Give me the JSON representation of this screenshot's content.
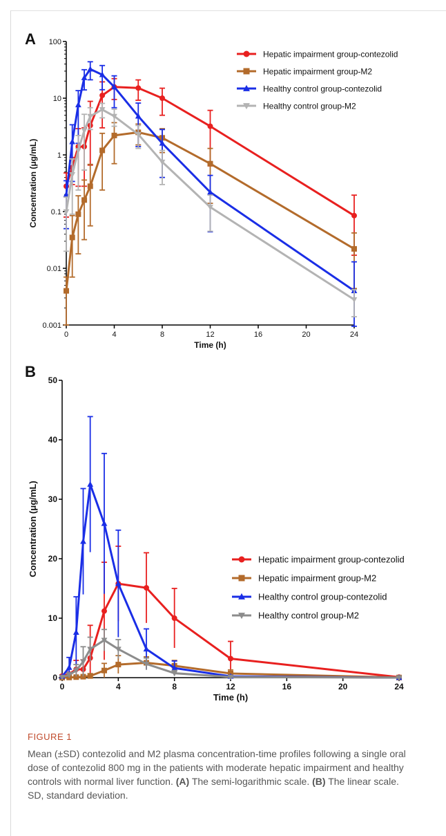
{
  "figure": {
    "label": "FIGURE 1",
    "caption": {
      "intro": "Mean (±SD) contezolid and M2 plasma concentration-time profiles following a single oral dose of contezolid 800 mg in the patients with moderate hepatic impairment and healthy controls with normal liver function. ",
      "part_a_label": "(A)",
      "part_a_text": " The semi-logarithmic scale. ",
      "part_b_label": "(B)",
      "part_b_text": " The linear scale. SD, standard deviation."
    }
  },
  "chart_data": [
    {
      "panel": "A",
      "type": "line",
      "xlabel": "Time (h)",
      "ylabel": "Concentration (μg/mL)",
      "xlim": [
        0,
        24
      ],
      "ylim": [
        0.001,
        100
      ],
      "yscale": "log",
      "x_ticks": [
        0,
        4,
        8,
        12,
        16,
        20,
        24
      ],
      "y_ticks": [
        0.001,
        0.01,
        0.1,
        1,
        10,
        100
      ],
      "y_tick_labels": [
        "0.001",
        "0.01",
        "0.1",
        "1",
        "10",
        "100"
      ],
      "grid": false,
      "legend_position": "top-right",
      "series": [
        {
          "name": "Hepatic  impairment group-contezolid",
          "color": "#e8201f",
          "marker": "circle",
          "x": [
            0,
            0.5,
            1,
            1.5,
            2,
            3,
            4,
            6,
            8,
            12,
            24
          ],
          "y": [
            0.28,
            0.6,
            1.4,
            1.4,
            3.3,
            11.2,
            15.8,
            15.1,
            10.0,
            3.2,
            0.085
          ],
          "err": [
            0.2,
            0.3,
            1.5,
            1.6,
            5.5,
            8.2,
            6.3,
            5.9,
            5.0,
            2.9,
            0.11
          ]
        },
        {
          "name": "Hepatic  impairment group-M2",
          "color": "#b36b2b",
          "marker": "square",
          "x": [
            0,
            0.5,
            1,
            1.5,
            2,
            3,
            4,
            6,
            8,
            12,
            24
          ],
          "y": [
            0.004,
            0.035,
            0.09,
            0.16,
            0.28,
            1.2,
            2.2,
            2.5,
            2.0,
            0.7,
            0.022
          ],
          "err": [
            0.003,
            0.05,
            0.1,
            0.2,
            0.4,
            1.2,
            1.5,
            1.0,
            0.9,
            0.6,
            0.02
          ]
        },
        {
          "name": "Healthy control group-contezolid",
          "color": "#1a2ee6",
          "marker": "triangle",
          "x": [
            0,
            0.5,
            1,
            1.5,
            2,
            3,
            4,
            6,
            8,
            12,
            24
          ],
          "y": [
            0.2,
            1.7,
            7.6,
            22.9,
            32.5,
            25.9,
            15.8,
            4.8,
            1.6,
            0.22,
            0.004
          ],
          "err": [
            0.15,
            1.7,
            6.0,
            8.9,
            11.4,
            11.8,
            9.0,
            3.4,
            1.2,
            0.215,
            0.009
          ]
        },
        {
          "name": "Healthy control group-M2",
          "color": "#b3b3b3",
          "marker": "inverted-triangle",
          "x": [
            0,
            0.5,
            1,
            1.5,
            2,
            3,
            4,
            6,
            8,
            12,
            24
          ],
          "y": [
            0.1,
            0.45,
            1.2,
            2.7,
            4.8,
            6.3,
            4.8,
            2.3,
            0.75,
            0.12,
            0.0028
          ],
          "err": [
            0.08,
            0.4,
            1.0,
            2.5,
            2.0,
            1.8,
            1.6,
            1.0,
            0.45,
            0.075,
            0.0014
          ]
        }
      ]
    },
    {
      "panel": "B",
      "type": "line",
      "xlabel": "Time (h)",
      "ylabel": "Concentration (μg/mL)",
      "xlim": [
        0,
        24
      ],
      "ylim": [
        0,
        50
      ],
      "yscale": "linear",
      "x_ticks": [
        0,
        4,
        8,
        12,
        16,
        20,
        24
      ],
      "y_ticks": [
        0,
        10,
        20,
        30,
        40,
        50
      ],
      "grid": false,
      "legend_position": "right",
      "series": [
        {
          "name": "Hepatic  impairment group-contezolid",
          "color": "#e8201f",
          "marker": "circle",
          "x": [
            0,
            0.5,
            1,
            1.5,
            2,
            3,
            4,
            6,
            8,
            12,
            24
          ],
          "y": [
            0.28,
            0.6,
            1.4,
            1.4,
            3.3,
            11.2,
            15.8,
            15.1,
            10.0,
            3.2,
            0.085
          ],
          "err": [
            0.2,
            0.3,
            1.5,
            1.6,
            5.5,
            8.2,
            6.3,
            5.9,
            5.0,
            2.9,
            0.11
          ]
        },
        {
          "name": "Hepatic  impairment group-M2",
          "color": "#b36b2b",
          "marker": "square",
          "x": [
            0,
            0.5,
            1,
            1.5,
            2,
            3,
            4,
            6,
            8,
            12,
            24
          ],
          "y": [
            0.004,
            0.035,
            0.09,
            0.16,
            0.28,
            1.2,
            2.2,
            2.5,
            2.0,
            0.7,
            0.022
          ],
          "err": [
            0.003,
            0.05,
            0.1,
            0.2,
            0.4,
            1.2,
            1.5,
            1.0,
            0.9,
            0.6,
            0.02
          ]
        },
        {
          "name": "Healthy control group-contezolid",
          "color": "#1a2ee6",
          "marker": "triangle",
          "x": [
            0,
            0.5,
            1,
            1.5,
            2,
            3,
            4,
            6,
            8,
            12,
            24
          ],
          "y": [
            0.2,
            1.7,
            7.6,
            22.9,
            32.5,
            25.9,
            15.8,
            4.8,
            1.6,
            0.22,
            0.004
          ],
          "err": [
            0.15,
            1.7,
            6.0,
            8.9,
            11.4,
            11.8,
            9.0,
            3.4,
            1.2,
            0.215,
            0.009
          ]
        },
        {
          "name": "Healthy control group-M2",
          "color": "#8c8c8c",
          "marker": "inverted-triangle",
          "x": [
            0,
            0.5,
            1,
            1.5,
            2,
            3,
            4,
            6,
            8,
            12,
            24
          ],
          "y": [
            0.1,
            0.45,
            1.2,
            2.7,
            4.8,
            6.3,
            4.8,
            2.3,
            0.75,
            0.12,
            0.0028
          ],
          "err": [
            0.08,
            0.4,
            1.0,
            2.5,
            2.0,
            1.8,
            1.6,
            1.0,
            0.45,
            0.075,
            0.0014
          ]
        }
      ]
    }
  ]
}
